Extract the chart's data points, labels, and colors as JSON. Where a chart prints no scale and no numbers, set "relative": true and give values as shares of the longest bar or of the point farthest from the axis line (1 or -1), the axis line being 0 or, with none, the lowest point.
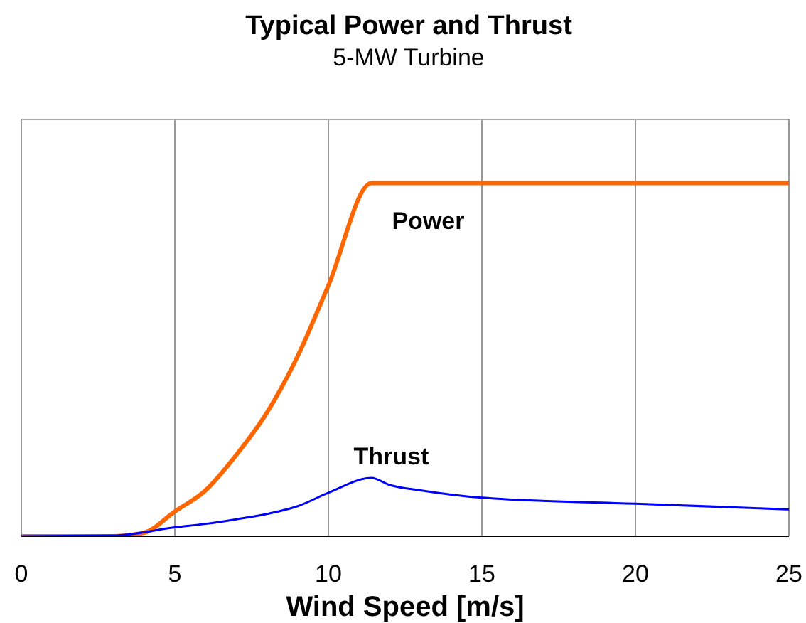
{
  "chart_data": {
    "type": "line",
    "title": "Typical Power and Thrust",
    "subtitle": "5-MW Turbine",
    "xlabel": "Wind Speed [m/s]",
    "xlim": [
      0,
      25
    ],
    "xticks": [
      0,
      5,
      10,
      15,
      20,
      25
    ],
    "relative": true,
    "grid": "x",
    "legend": false,
    "marker": "none",
    "line_style": "solid",
    "series": [
      {
        "name": "Power",
        "color": "#ff6600",
        "x": [
          0,
          3,
          4,
          5,
          6,
          7,
          8,
          9,
          10,
          11.4,
          25
        ],
        "values": [
          0,
          0,
          0.01,
          0.07,
          0.13,
          0.23,
          0.35,
          0.51,
          0.71,
          1,
          1
        ]
      },
      {
        "name": "Thrust",
        "color": "#0000ff",
        "x": [
          0,
          3,
          5,
          6,
          7,
          8,
          9,
          10,
          11.4,
          12,
          13,
          15,
          20,
          25
        ],
        "values": [
          0,
          0.002,
          0.025,
          0.035,
          0.048,
          0.063,
          0.085,
          0.123,
          0.165,
          0.145,
          0.13,
          0.109,
          0.092,
          0.076
        ]
      }
    ]
  }
}
